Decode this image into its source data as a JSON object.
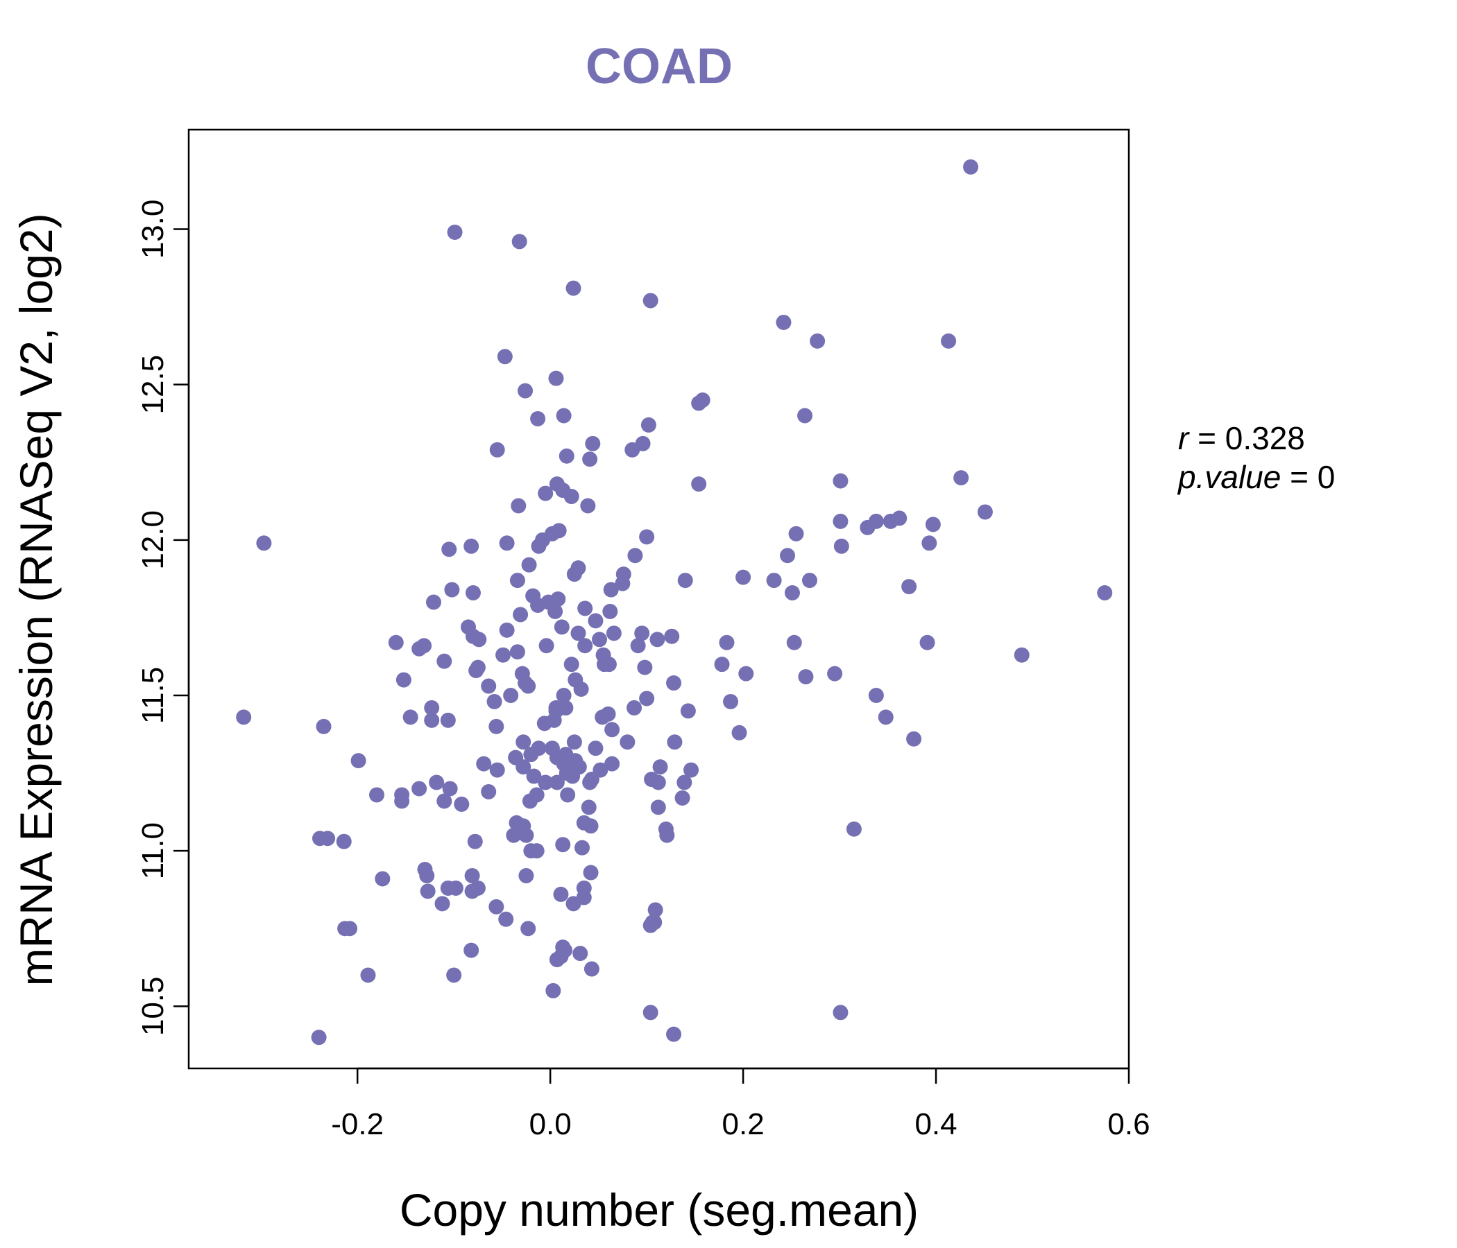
{
  "chart_data": {
    "type": "scatter",
    "title": "COAD",
    "xlabel": "Copy number (seg.mean)",
    "ylabel": "mRNA Expression (RNASeq V2, log2)",
    "xlim": [
      -0.375,
      0.6
    ],
    "ylim": [
      10.3,
      13.32
    ],
    "xticks": [
      -0.2,
      0.0,
      0.2,
      0.4,
      0.6
    ],
    "xtick_labels": [
      "-0.2",
      "0.0",
      "0.2",
      "0.4",
      "0.6"
    ],
    "yticks": [
      10.5,
      11.0,
      11.5,
      12.0,
      12.5,
      13.0
    ],
    "ytick_labels": [
      "10.5",
      "11.0",
      "11.5",
      "12.0",
      "12.5",
      "13.0"
    ],
    "annotation": {
      "r_label": "r",
      "r_value": "0.328",
      "p_label": "p.value",
      "p_value": "0",
      "eq": "="
    },
    "colors": {
      "points": "#7570b3",
      "title": "#7570b3",
      "axis": "#000000"
    },
    "series": [
      {
        "name": "samples",
        "points": [
          [
            0.436,
            13.2
          ],
          [
            -0.099,
            12.99
          ],
          [
            -0.032,
            12.96
          ],
          [
            0.024,
            12.81
          ],
          [
            0.104,
            12.77
          ],
          [
            0.242,
            12.7
          ],
          [
            0.277,
            12.64
          ],
          [
            0.413,
            12.64
          ],
          [
            -0.047,
            12.59
          ],
          [
            0.006,
            12.52
          ],
          [
            -0.026,
            12.48
          ],
          [
            0.154,
            12.44
          ],
          [
            0.158,
            12.45
          ],
          [
            0.264,
            12.4
          ],
          [
            -0.013,
            12.39
          ],
          [
            0.014,
            12.4
          ],
          [
            0.102,
            12.37
          ],
          [
            0.044,
            12.31
          ],
          [
            0.096,
            12.31
          ],
          [
            0.085,
            12.29
          ],
          [
            -0.055,
            12.29
          ],
          [
            0.017,
            12.27
          ],
          [
            0.041,
            12.26
          ],
          [
            0.426,
            12.2
          ],
          [
            0.301,
            12.19
          ],
          [
            0.154,
            12.18
          ],
          [
            0.007,
            12.18
          ],
          [
            0.013,
            12.16
          ],
          [
            -0.005,
            12.15
          ],
          [
            0.022,
            12.14
          ],
          [
            0.039,
            12.11
          ],
          [
            -0.033,
            12.11
          ],
          [
            0.451,
            12.09
          ],
          [
            0.353,
            12.06
          ],
          [
            0.362,
            12.07
          ],
          [
            0.338,
            12.06
          ],
          [
            0.329,
            12.04
          ],
          [
            0.397,
            12.05
          ],
          [
            0.301,
            12.06
          ],
          [
            0.009,
            12.03
          ],
          [
            0.002,
            12.02
          ],
          [
            -0.008,
            12.0
          ],
          [
            0.255,
            12.02
          ],
          [
            0.1,
            12.01
          ],
          [
            -0.045,
            11.99
          ],
          [
            0.393,
            11.99
          ],
          [
            -0.105,
            11.97
          ],
          [
            -0.082,
            11.98
          ],
          [
            -0.012,
            11.98
          ],
          [
            0.302,
            11.98
          ],
          [
            0.088,
            11.95
          ],
          [
            0.246,
            11.95
          ],
          [
            -0.022,
            11.92
          ],
          [
            0.029,
            11.91
          ],
          [
            0.076,
            11.89
          ],
          [
            0.025,
            11.89
          ],
          [
            0.2,
            11.88
          ],
          [
            0.232,
            11.87
          ],
          [
            -0.034,
            11.87
          ],
          [
            0.14,
            11.87
          ],
          [
            0.269,
            11.87
          ],
          [
            0.075,
            11.86
          ],
          [
            0.372,
            11.85
          ],
          [
            -0.102,
            11.84
          ],
          [
            0.063,
            11.84
          ],
          [
            0.251,
            11.83
          ],
          [
            -0.018,
            11.82
          ],
          [
            0.575,
            11.83
          ],
          [
            -0.08,
            11.83
          ],
          [
            0.008,
            11.81
          ],
          [
            -0.002,
            11.8
          ],
          [
            -0.121,
            11.8
          ],
          [
            -0.013,
            11.79
          ],
          [
            0.062,
            11.77
          ],
          [
            0.036,
            11.78
          ],
          [
            0.005,
            11.77
          ],
          [
            -0.031,
            11.76
          ],
          [
            0.047,
            11.74
          ],
          [
            -0.085,
            11.72
          ],
          [
            0.012,
            11.72
          ],
          [
            -0.045,
            11.71
          ],
          [
            0.095,
            11.7
          ],
          [
            0.126,
            11.69
          ],
          [
            0.029,
            11.7
          ],
          [
            0.066,
            11.7
          ],
          [
            -0.08,
            11.69
          ],
          [
            -0.074,
            11.68
          ],
          [
            0.111,
            11.68
          ],
          [
            0.051,
            11.68
          ],
          [
            -0.16,
            11.67
          ],
          [
            0.183,
            11.67
          ],
          [
            0.391,
            11.67
          ],
          [
            0.253,
            11.67
          ],
          [
            0.036,
            11.66
          ],
          [
            -0.131,
            11.66
          ],
          [
            0.091,
            11.66
          ],
          [
            -0.136,
            11.65
          ],
          [
            -0.004,
            11.66
          ],
          [
            -0.049,
            11.63
          ],
          [
            -0.034,
            11.64
          ],
          [
            0.489,
            11.63
          ],
          [
            0.055,
            11.63
          ],
          [
            -0.11,
            11.61
          ],
          [
            0.061,
            11.6
          ],
          [
            0.056,
            11.6
          ],
          [
            0.178,
            11.6
          ],
          [
            0.022,
            11.6
          ],
          [
            0.098,
            11.59
          ],
          [
            -0.075,
            11.59
          ],
          [
            -0.029,
            11.57
          ],
          [
            -0.077,
            11.58
          ],
          [
            0.203,
            11.57
          ],
          [
            0.295,
            11.57
          ],
          [
            0.265,
            11.56
          ],
          [
            -0.152,
            11.55
          ],
          [
            -0.026,
            11.54
          ],
          [
            0.026,
            11.55
          ],
          [
            0.128,
            11.54
          ],
          [
            -0.023,
            11.53
          ],
          [
            -0.064,
            11.53
          ],
          [
            0.032,
            11.52
          ],
          [
            0.014,
            11.5
          ],
          [
            -0.041,
            11.5
          ],
          [
            0.338,
            11.5
          ],
          [
            0.1,
            11.49
          ],
          [
            -0.058,
            11.48
          ],
          [
            0.187,
            11.48
          ],
          [
            0.016,
            11.46
          ],
          [
            0.087,
            11.46
          ],
          [
            -0.123,
            11.46
          ],
          [
            0.006,
            11.46
          ],
          [
            0.143,
            11.45
          ],
          [
            0.006,
            11.45
          ],
          [
            0.06,
            11.44
          ],
          [
            -0.145,
            11.43
          ],
          [
            0.054,
            11.43
          ],
          [
            -0.318,
            11.43
          ],
          [
            0.348,
            11.43
          ],
          [
            0.004,
            11.42
          ],
          [
            -0.106,
            11.42
          ],
          [
            -0.123,
            11.42
          ],
          [
            -0.006,
            11.41
          ],
          [
            0.064,
            11.39
          ],
          [
            -0.056,
            11.4
          ],
          [
            -0.235,
            11.4
          ],
          [
            0.196,
            11.38
          ],
          [
            0.377,
            11.36
          ],
          [
            0.025,
            11.35
          ],
          [
            -0.028,
            11.35
          ],
          [
            0.08,
            11.35
          ],
          [
            0.129,
            11.35
          ],
          [
            0.047,
            11.33
          ],
          [
            0.002,
            11.33
          ],
          [
            -0.012,
            11.33
          ],
          [
            -0.02,
            11.31
          ],
          [
            0.016,
            11.31
          ],
          [
            -0.036,
            11.3
          ],
          [
            0.007,
            11.3
          ],
          [
            0.026,
            11.29
          ],
          [
            -0.199,
            11.29
          ],
          [
            0.014,
            11.28
          ],
          [
            -0.069,
            11.28
          ],
          [
            0.03,
            11.27
          ],
          [
            0.064,
            11.28
          ],
          [
            0.114,
            11.27
          ],
          [
            0.052,
            11.26
          ],
          [
            -0.028,
            11.27
          ],
          [
            -0.055,
            11.26
          ],
          [
            0.146,
            11.26
          ],
          [
            0.017,
            11.25
          ],
          [
            -0.017,
            11.24
          ],
          [
            0.023,
            11.24
          ],
          [
            0.043,
            11.23
          ],
          [
            0.112,
            11.22
          ],
          [
            0.139,
            11.22
          ],
          [
            -0.118,
            11.22
          ],
          [
            0.041,
            11.22
          ],
          [
            0.105,
            11.23
          ],
          [
            -0.005,
            11.22
          ],
          [
            0.007,
            11.22
          ],
          [
            -0.104,
            11.2
          ],
          [
            -0.136,
            11.2
          ],
          [
            -0.014,
            11.18
          ],
          [
            0.018,
            11.18
          ],
          [
            -0.064,
            11.19
          ],
          [
            -0.154,
            11.18
          ],
          [
            -0.18,
            11.18
          ],
          [
            -0.154,
            11.16
          ],
          [
            -0.021,
            11.16
          ],
          [
            0.137,
            11.17
          ],
          [
            -0.11,
            11.16
          ],
          [
            -0.092,
            11.15
          ],
          [
            0.112,
            11.14
          ],
          [
            0.04,
            11.14
          ],
          [
            0.035,
            11.09
          ],
          [
            0.042,
            11.08
          ],
          [
            -0.028,
            11.08
          ],
          [
            0.12,
            11.07
          ],
          [
            -0.035,
            11.09
          ],
          [
            0.315,
            11.07
          ],
          [
            -0.038,
            11.05
          ],
          [
            -0.025,
            11.05
          ],
          [
            0.121,
            11.05
          ],
          [
            -0.239,
            11.04
          ],
          [
            -0.231,
            11.04
          ],
          [
            -0.214,
            11.03
          ],
          [
            -0.078,
            11.03
          ],
          [
            0.013,
            11.02
          ],
          [
            -0.014,
            11.0
          ],
          [
            0.033,
            11.01
          ],
          [
            -0.02,
            11.0
          ],
          [
            -0.13,
            10.94
          ],
          [
            0.042,
            10.93
          ],
          [
            -0.128,
            10.92
          ],
          [
            -0.174,
            10.91
          ],
          [
            -0.081,
            10.92
          ],
          [
            -0.025,
            10.92
          ],
          [
            -0.106,
            10.88
          ],
          [
            -0.098,
            10.88
          ],
          [
            0.035,
            10.88
          ],
          [
            -0.075,
            10.88
          ],
          [
            -0.127,
            10.87
          ],
          [
            -0.081,
            10.87
          ],
          [
            0.011,
            10.86
          ],
          [
            0.035,
            10.85
          ],
          [
            0.024,
            10.83
          ],
          [
            -0.112,
            10.83
          ],
          [
            -0.056,
            10.82
          ],
          [
            0.109,
            10.81
          ],
          [
            0.106,
            10.77
          ],
          [
            0.108,
            10.77
          ],
          [
            -0.046,
            10.78
          ],
          [
            0.104,
            10.76
          ],
          [
            -0.208,
            10.75
          ],
          [
            -0.213,
            10.75
          ],
          [
            -0.023,
            10.75
          ],
          [
            0.013,
            10.69
          ],
          [
            0.015,
            10.68
          ],
          [
            -0.082,
            10.68
          ],
          [
            0.031,
            10.67
          ],
          [
            0.007,
            10.65
          ],
          [
            0.011,
            10.66
          ],
          [
            0.043,
            10.62
          ],
          [
            -0.189,
            10.6
          ],
          [
            -0.1,
            10.6
          ],
          [
            0.003,
            10.55
          ],
          [
            0.104,
            10.48
          ],
          [
            0.301,
            10.48
          ],
          [
            0.128,
            10.41
          ],
          [
            -0.24,
            10.4
          ],
          [
            -0.297,
            11.99
          ]
        ]
      }
    ]
  }
}
